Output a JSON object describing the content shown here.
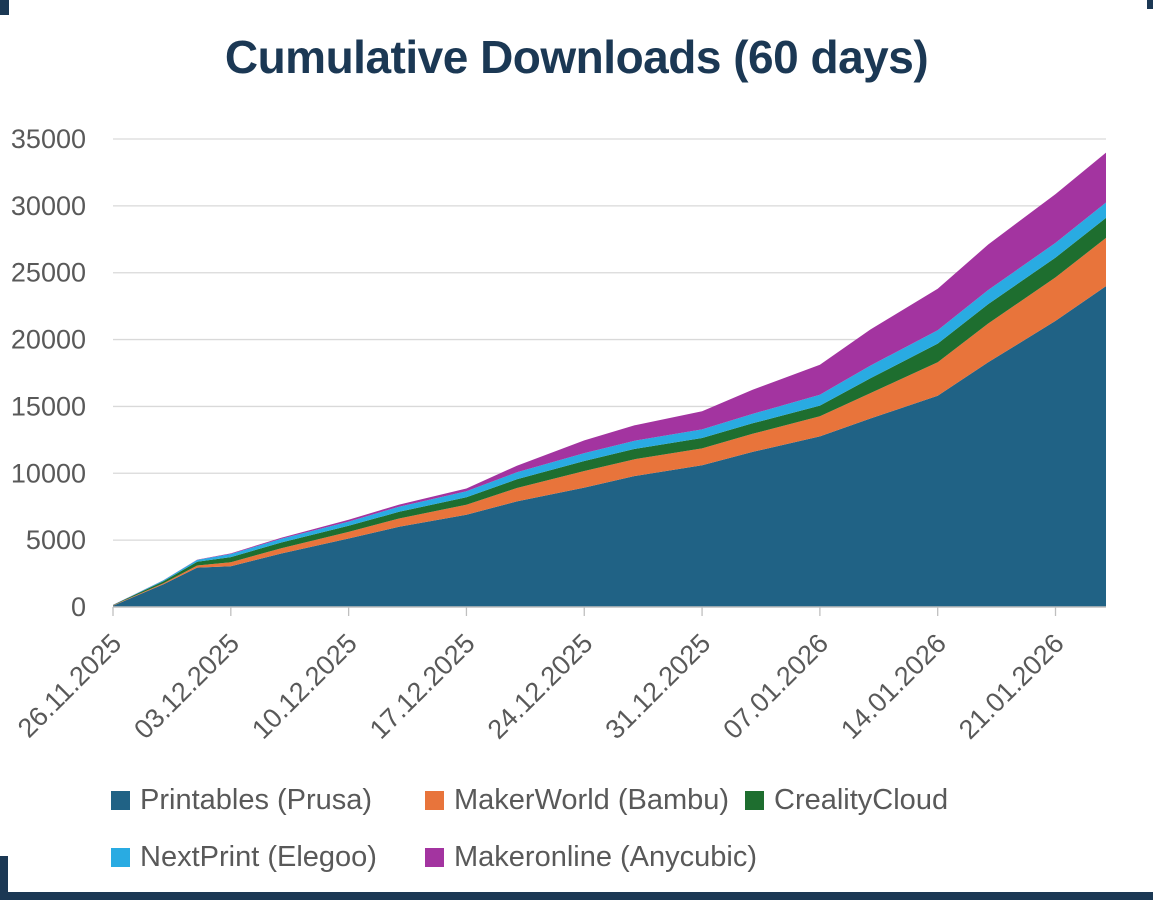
{
  "frame": {
    "accent_color": "#1B3854"
  },
  "chart": {
    "title": "Cumulative Downloads (60 days)"
  },
  "chart_data": {
    "type": "area",
    "stacked": true,
    "title": "Cumulative Downloads (60 days)",
    "xlabel": "",
    "ylabel": "",
    "ylim": [
      0,
      35000
    ],
    "y_ticks": [
      0,
      5000,
      10000,
      15000,
      20000,
      25000,
      30000,
      35000
    ],
    "grid": true,
    "legend_position": "bottom",
    "x_range_days": [
      0,
      59
    ],
    "x_tick_days": [
      0,
      7,
      14,
      21,
      28,
      35,
      42,
      49,
      56
    ],
    "x_tick_labels": [
      "26.11.2025",
      "03.12.2025",
      "10.12.2025",
      "17.12.2025",
      "24.12.2025",
      "31.12.2025",
      "07.01.2026",
      "14.01.2026",
      "21.01.2026"
    ],
    "sample_days": [
      0,
      3,
      5,
      7,
      10,
      14,
      17,
      21,
      24,
      28,
      31,
      35,
      38,
      42,
      45,
      49,
      52,
      56,
      59
    ],
    "series": [
      {
        "name": "Printables (Prusa)",
        "color": "#206285",
        "values": [
          100,
          1700,
          2950,
          3050,
          4000,
          5120,
          6000,
          6900,
          7900,
          8930,
          9800,
          10600,
          11600,
          12760,
          14100,
          15800,
          18300,
          21400,
          24000
        ]
      },
      {
        "name": "MakerWorld (Bambu)",
        "color": "#E8743B",
        "values": [
          20,
          80,
          150,
          300,
          400,
          500,
          620,
          750,
          1000,
          1240,
          1250,
          1260,
          1350,
          1500,
          1900,
          2500,
          2900,
          3250,
          3600
        ]
      },
      {
        "name": "CrealityCloud",
        "color": "#1E6E2F",
        "values": [
          30,
          150,
          280,
          380,
          420,
          450,
          500,
          560,
          650,
          750,
          770,
          780,
          790,
          800,
          1100,
          1400,
          1450,
          1480,
          1500
        ]
      },
      {
        "name": "NextPrint (Elegoo)",
        "color": "#29ABE2",
        "values": [
          10,
          70,
          140,
          230,
          280,
          320,
          380,
          450,
          520,
          590,
          620,
          640,
          700,
          820,
          950,
          1000,
          1060,
          1100,
          1150
        ]
      },
      {
        "name": "Makeronline (Anycubic)",
        "color": "#A334A0",
        "values": [
          5,
          15,
          25,
          50,
          80,
          130,
          160,
          200,
          500,
          950,
          1150,
          1360,
          1800,
          2240,
          2700,
          3100,
          3400,
          3650,
          3730
        ]
      }
    ],
    "axis_style": {
      "tick_label_color": "#595959",
      "gridline_color": "#D9D9D9",
      "axis_line_color": "#BFBFBF",
      "x_label_rotation_deg": -45
    }
  }
}
